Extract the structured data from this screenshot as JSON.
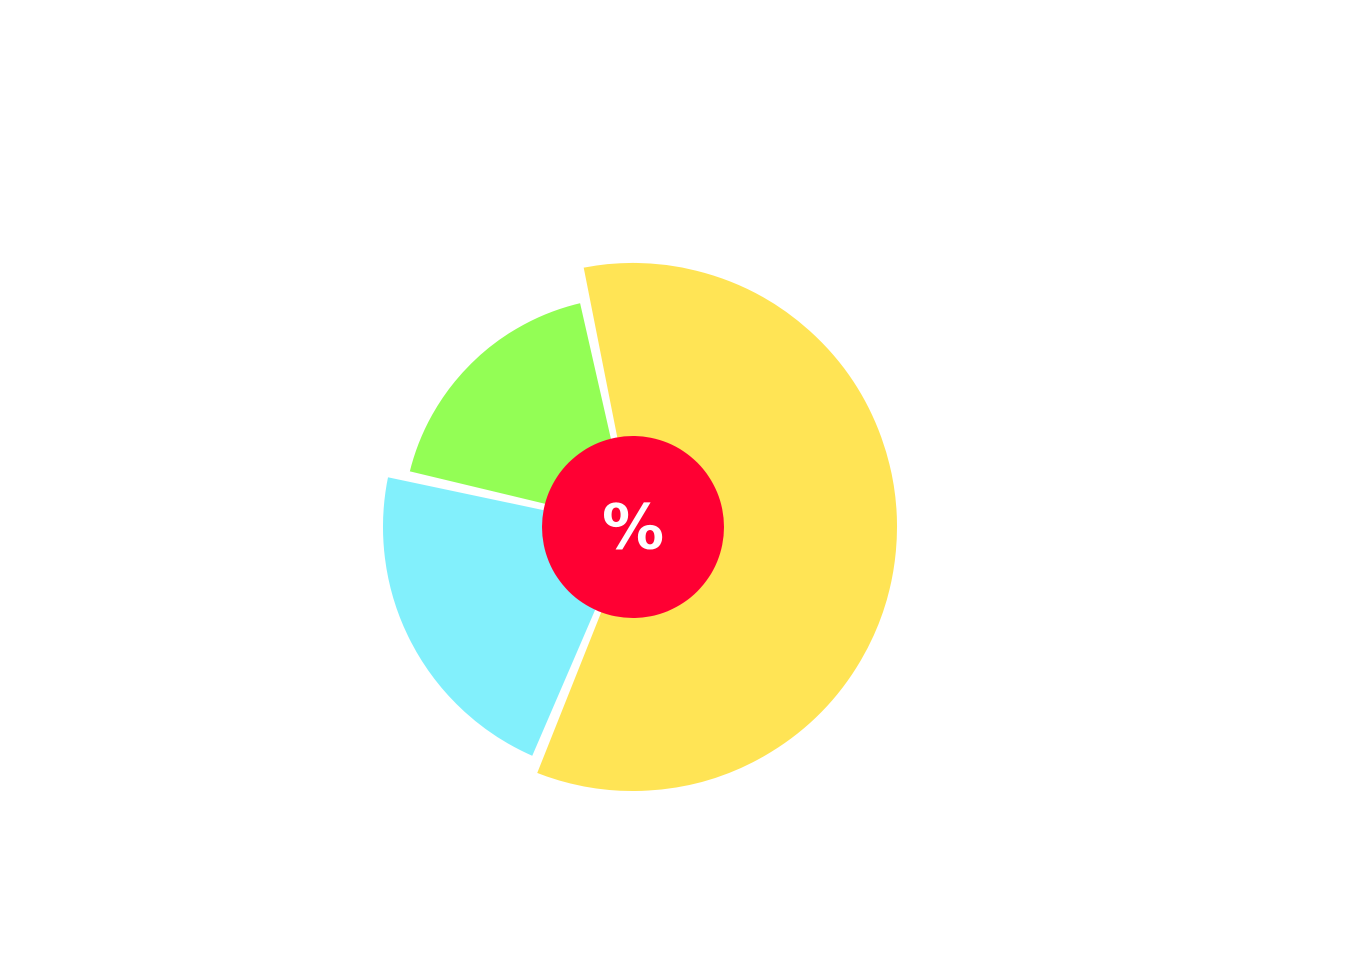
{
  "chart_data": {
    "type": "pie",
    "center_label": "%",
    "center_color": "#ff0033",
    "slices": [
      {
        "value": 57.5,
        "color": "#ffe455"
      },
      {
        "value": 21.5,
        "color": "#82f0fc"
      },
      {
        "value": 17.5,
        "color": "#93fe55"
      }
    ]
  }
}
